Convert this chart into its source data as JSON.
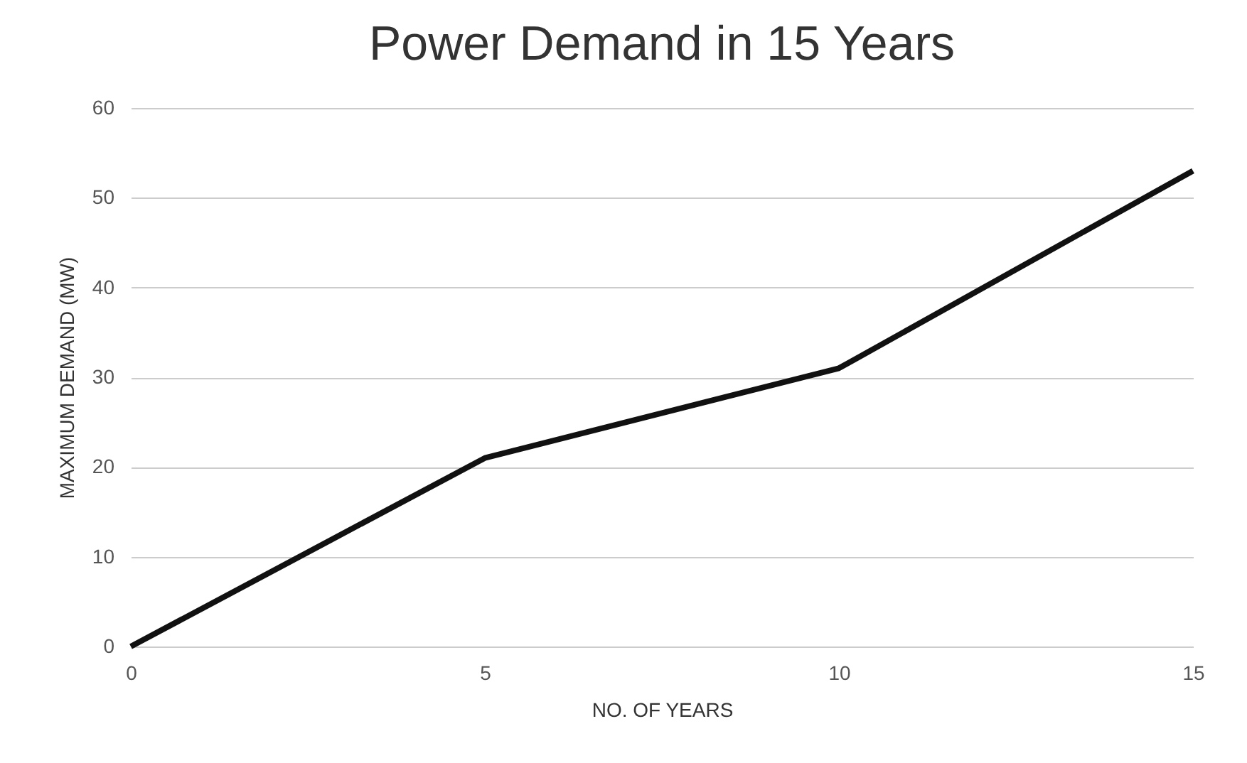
{
  "chart_data": {
    "type": "line",
    "title": "Power Demand in 15 Years",
    "xlabel": "NO. OF YEARS",
    "ylabel": "MAXIMUM DEMAND (MW)",
    "x": [
      0,
      5,
      10,
      15
    ],
    "series": [
      {
        "color": "#111111",
        "values": [
          0,
          21,
          31,
          53
        ]
      }
    ],
    "xlim": [
      0,
      15
    ],
    "xticks": [
      0,
      5,
      10,
      15
    ],
    "ylim": [
      0,
      60
    ],
    "yticks": [
      0,
      10,
      20,
      30,
      40,
      50,
      60
    ],
    "grid": "y",
    "marker": "none",
    "line_style": "solid"
  }
}
